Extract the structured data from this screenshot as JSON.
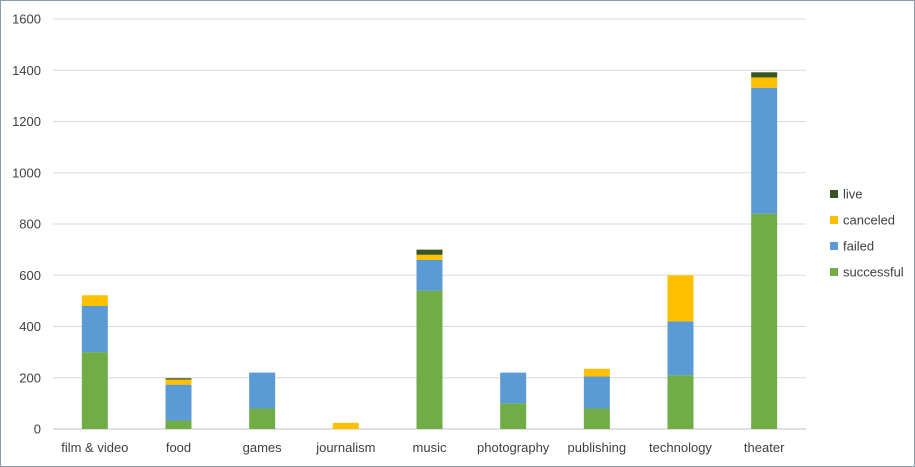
{
  "chart_data": {
    "type": "bar",
    "stacked": true,
    "categories": [
      "film & video",
      "food",
      "games",
      "journalism",
      "music",
      "photography",
      "publishing",
      "technology",
      "theater"
    ],
    "series": [
      {
        "name": "successful",
        "color": "#70ad47",
        "values": [
          300,
          33,
          80,
          0,
          540,
          100,
          80,
          210,
          840
        ]
      },
      {
        "name": "failed",
        "color": "#5b9bd5",
        "values": [
          180,
          140,
          140,
          0,
          120,
          120,
          125,
          210,
          492
        ]
      },
      {
        "name": "canceled",
        "color": "#ffc000",
        "values": [
          42,
          20,
          0,
          24,
          20,
          0,
          30,
          180,
          40
        ]
      },
      {
        "name": "live",
        "color": "#375623",
        "values": [
          0,
          5,
          0,
          0,
          20,
          0,
          0,
          0,
          20
        ]
      }
    ],
    "ylim": [
      0,
      1600
    ],
    "yticks": [
      "0",
      "200",
      "400",
      "600",
      "800",
      "1000",
      "1200",
      "1400",
      "1600"
    ],
    "grid": true,
    "legend_position": "right",
    "legend_order": [
      "live",
      "canceled",
      "failed",
      "successful"
    ]
  }
}
